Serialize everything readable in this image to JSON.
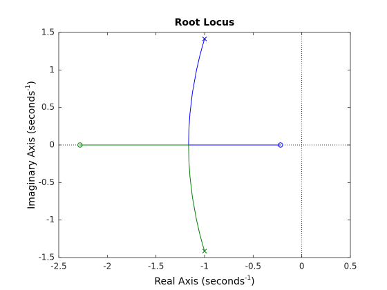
{
  "chart_data": {
    "type": "rootlocus",
    "title": "Root Locus",
    "x_label": {
      "text": "Real Axis (seconds",
      "superscript": "-1",
      "suffix": ")"
    },
    "y_label": {
      "text": "Imaginary Axis (seconds",
      "superscript": "-1",
      "suffix": ")"
    },
    "xlim": [
      -2.5,
      0.5
    ],
    "xticks": [
      -2.5,
      -2,
      -1.5,
      -1,
      -0.5,
      0,
      0.5
    ],
    "ylim": [
      -1.5,
      1.5
    ],
    "yticks": [
      -1.5,
      -1,
      -0.5,
      0,
      0.5,
      1,
      1.5
    ],
    "series": [
      {
        "color": "#0000ff",
        "x": [
          -1,
          -1.023,
          -1.05,
          -1.083,
          -1.125,
          -1.15,
          -1.161,
          -1.164,
          -0.654,
          -0.345,
          -0.232,
          -0.219
        ],
        "y": [
          1.414,
          1.314,
          1.182,
          0.997,
          0.696,
          0.421,
          0.214,
          0,
          0,
          0,
          0,
          0
        ],
        "pole": {
          "x": -1,
          "y": 1.414
        },
        "zero": {
          "x": -0.219,
          "y": 0
        }
      },
      {
        "color": "#008000",
        "x": [
          -1,
          -1.023,
          -1.05,
          -1.083,
          -1.125,
          -1.15,
          -1.161,
          -1.164,
          -1.722,
          -2.11,
          -2.263,
          -2.281
        ],
        "y": [
          -1.414,
          -1.314,
          -1.182,
          -0.997,
          -0.696,
          -0.421,
          -0.214,
          0,
          0,
          0,
          0,
          0
        ],
        "pole": {
          "x": -1,
          "y": -1.414
        },
        "zero": {
          "x": -2.281,
          "y": 0
        }
      }
    ]
  }
}
